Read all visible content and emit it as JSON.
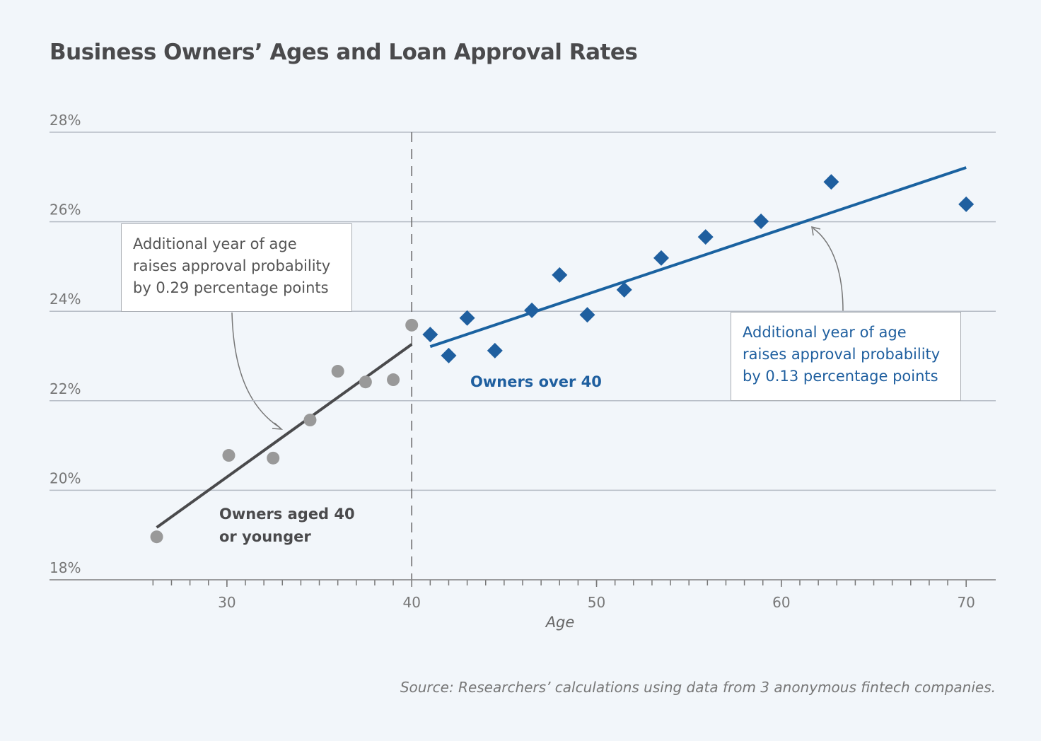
{
  "chart_data": {
    "type": "scatter",
    "title": "Business Owners’ Ages and Loan Approval Rates",
    "x_label": "Age",
    "source": "Source: Researchers’ calculations using data from 3 anonymous fintech companies.",
    "xlim": [
      20.4,
      71.6
    ],
    "ylim": [
      18,
      28
    ],
    "xticks": [
      30,
      40,
      50,
      60,
      70
    ],
    "xminorticks": [
      26,
      27,
      28,
      29,
      30,
      31,
      32,
      33,
      34,
      35,
      36,
      37,
      38,
      39,
      40,
      41,
      42,
      43,
      44,
      45,
      46,
      47,
      48,
      49,
      50,
      51,
      52,
      53,
      54,
      55,
      56,
      57,
      58,
      59,
      60,
      61,
      62,
      63,
      64,
      65,
      66,
      67,
      68,
      69,
      70
    ],
    "yticks": [
      {
        "value": 18,
        "label": "18%"
      },
      {
        "value": 20,
        "label": "20%"
      },
      {
        "value": 22,
        "label": "22%"
      },
      {
        "value": 24,
        "label": "24%"
      },
      {
        "value": 26,
        "label": "26%"
      },
      {
        "value": 28,
        "label": "28%"
      }
    ],
    "grid": true,
    "vline": 40,
    "series": [
      {
        "name": "Owners aged 40 or younger",
        "color": "#999999",
        "line_color": "#4a4a4c",
        "marker": "circle",
        "x": [
          26.2,
          30.1,
          32.5,
          34.5,
          36.0,
          37.5,
          39.0,
          40.0
        ],
        "values": [
          18.96,
          20.78,
          20.72,
          21.57,
          22.66,
          22.42,
          22.47,
          23.69
        ],
        "fit": {
          "x": [
            26.2,
            40.0
          ],
          "y": [
            19.17,
            23.26
          ]
        },
        "annotation": [
          "Additional year of age",
          "raises approval probability",
          "by 0.29 percentage points"
        ]
      },
      {
        "name": "Owners over 40",
        "color": "#1f5f9f",
        "line_color": "#1a62a0",
        "marker": "diamond",
        "x": [
          41.0,
          42.0,
          43.0,
          44.5,
          46.5,
          48.0,
          49.5,
          51.5,
          53.5,
          55.9,
          58.9,
          62.7,
          70.0
        ],
        "values": [
          23.48,
          23.01,
          23.85,
          23.12,
          24.02,
          24.81,
          23.92,
          24.48,
          25.19,
          25.66,
          26.01,
          26.89,
          26.39
        ],
        "fit": {
          "x": [
            41.0,
            70.0
          ],
          "y": [
            23.21,
            27.21
          ]
        },
        "annotation": [
          "Additional year of age",
          "raises approval probability",
          "by 0.13 percentage points"
        ]
      }
    ]
  }
}
